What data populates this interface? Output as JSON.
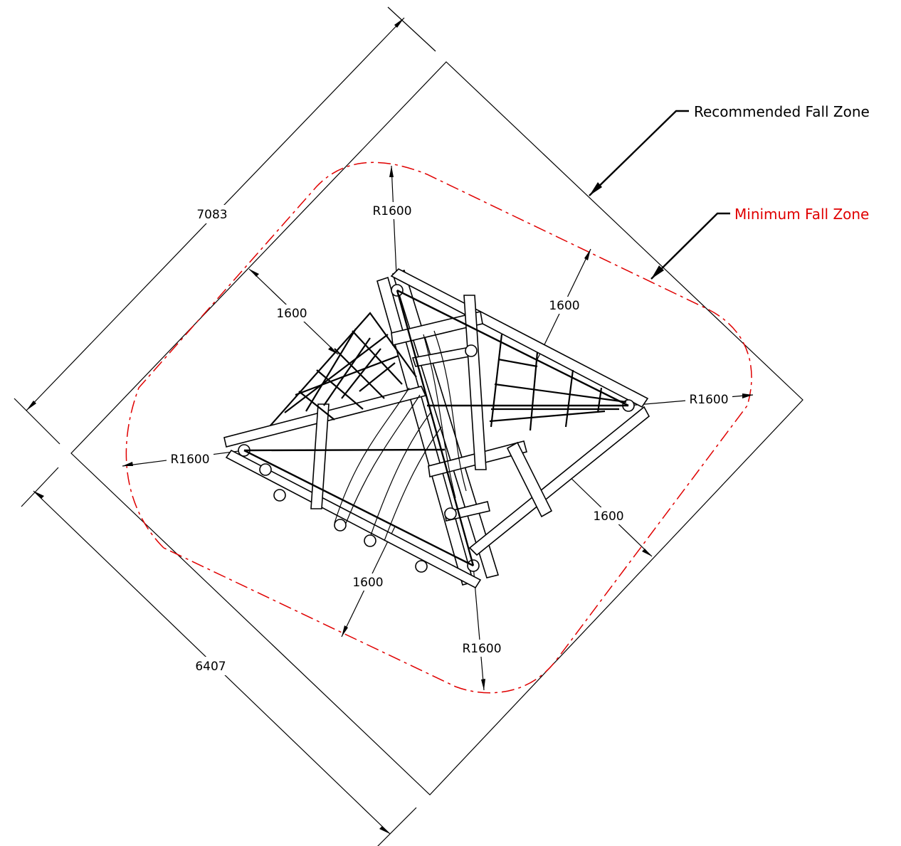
{
  "labels": {
    "recommended_fall_zone": "Recommended Fall Zone",
    "minimum_fall_zone": "Minimum Fall Zone"
  },
  "dimensions": {
    "length_7083": "7083",
    "length_6407": "6407",
    "offset_nw": "1600",
    "offset_ne": "1600",
    "offset_se": "1600",
    "offset_sw": "1600",
    "radius_top": "R1600",
    "radius_right": "R1600",
    "radius_left": "R1600",
    "radius_bottom": "R1600"
  },
  "colors": {
    "recommended_zone": "#000000",
    "minimum_zone": "#e00000"
  }
}
